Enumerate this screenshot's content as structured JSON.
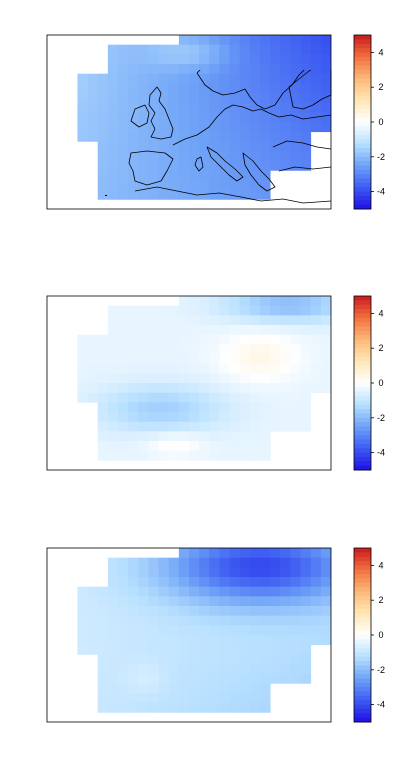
{
  "colorbar": {
    "ticks": [
      {
        "value": 4,
        "label": "4"
      },
      {
        "value": 2,
        "label": "2"
      },
      {
        "value": 0,
        "label": "0"
      },
      {
        "value": -2,
        "label": "-2"
      },
      {
        "value": -4,
        "label": "-4"
      }
    ],
    "range": [
      -5,
      5
    ],
    "colors": [
      "#1f0fe6",
      "#3d5cf2",
      "#6fa3f7",
      "#b7e0ff",
      "#ffffff",
      "#ffe7b5",
      "#fcb878",
      "#f2703f",
      "#c71a1f"
    ]
  },
  "panels": [
    {
      "name": "panel-1",
      "anomaly_field": "mostly-negative-strong-northeast"
    },
    {
      "name": "panel-2",
      "anomaly_field": "mixed-positive-baltic-negative-south"
    },
    {
      "name": "panel-3",
      "anomaly_field": "negative-strong-scandinavia"
    }
  ]
}
